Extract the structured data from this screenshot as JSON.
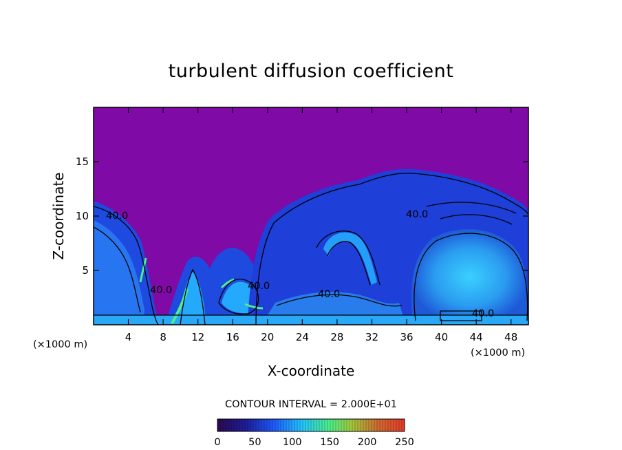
{
  "chart_data": {
    "type": "heatmap",
    "title": "turbulent diffusion coefficient",
    "xlabel": "X-coordinate",
    "ylabel": "Z-coordinate",
    "x_unit_left": "(×1000 m)",
    "x_unit_right": "(×1000 m)",
    "xlim": [
      0,
      50
    ],
    "ylim": [
      0,
      20
    ],
    "x_ticks": [
      4,
      8,
      12,
      16,
      20,
      24,
      28,
      32,
      36,
      40,
      44,
      48
    ],
    "y_ticks": [
      5,
      10,
      15
    ],
    "contour_interval_text": "CONTOUR INTERVAL = 2.000E+01",
    "contour_labels": [
      "40.0",
      "40.0",
      "40.0",
      "40.0",
      "40.0",
      "40.0"
    ],
    "colorbar": {
      "range": [
        0,
        250
      ],
      "ticks": [
        0,
        50,
        100,
        150,
        200,
        250
      ],
      "colors": [
        "#2a0a52",
        "#1d1d9a",
        "#1e5aff",
        "#22c4ff",
        "#4cf08a",
        "#a4c83c",
        "#d06a2e",
        "#e83a2a"
      ]
    },
    "background_value_color": "#7f0aa6"
  }
}
